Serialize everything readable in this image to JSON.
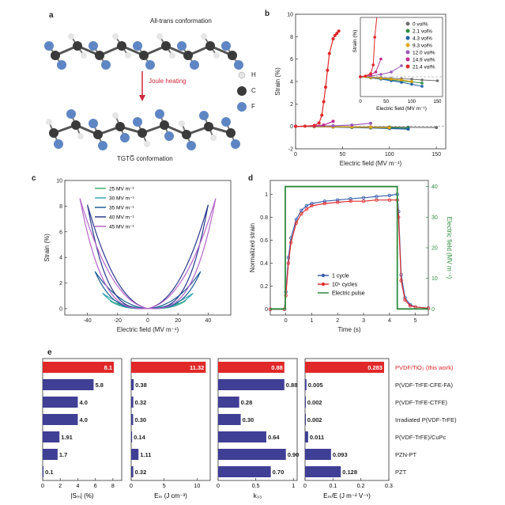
{
  "panel_a": {
    "letter": "a",
    "top_label": "All-trans conformation",
    "bottom_label": "TGTG̅ conformation",
    "arrow_label": "Joule heating",
    "legend": [
      {
        "symbol": "H",
        "color": "#e6e6e6"
      },
      {
        "symbol": "C",
        "color": "#3a3a3a"
      },
      {
        "symbol": "F",
        "color": "#5f86c4"
      }
    ]
  },
  "panel_b": {
    "letter": "b"
  },
  "panel_c": {
    "letter": "c"
  },
  "panel_d": {
    "letter": "d"
  },
  "panel_e": {
    "letter": "e"
  },
  "chart_data": [
    {
      "panel": "b",
      "type": "line",
      "xlabel": "Electric field (MV m⁻¹)",
      "ylabel": "Strain (%)",
      "xlim": [
        0,
        160
      ],
      "ylim": [
        -2,
        10
      ],
      "xticks": [
        0,
        50,
        100,
        150
      ],
      "yticks": [
        -2,
        0,
        2,
        4,
        6,
        8,
        10
      ],
      "legend": "top-right",
      "series": [
        {
          "name": "0 vol%",
          "color": "#707070",
          "x": [
            0,
            20,
            40,
            60,
            80,
            100,
            120,
            150
          ],
          "y": [
            0,
            -0.01,
            -0.02,
            -0.04,
            -0.05,
            -0.06,
            -0.08,
            -0.1
          ]
        },
        {
          "name": "2.1 vol%",
          "color": "#2e8b3e",
          "x": [
            0,
            20,
            40,
            60,
            80,
            100,
            120
          ],
          "y": [
            0,
            -0.02,
            -0.05,
            -0.08,
            -0.11,
            -0.13,
            -0.16
          ]
        },
        {
          "name": "4.3 vol%",
          "color": "#1f5fa6",
          "x": [
            0,
            20,
            40,
            60,
            80,
            100,
            120
          ],
          "y": [
            0,
            -0.03,
            -0.06,
            -0.1,
            -0.14,
            -0.19,
            -0.24
          ]
        },
        {
          "name": "9.3 vol%",
          "color": "#e0a400",
          "x": [
            0,
            20,
            40,
            60,
            80,
            100
          ],
          "y": [
            0,
            -0.02,
            -0.04,
            -0.06,
            -0.08,
            -0.12
          ]
        },
        {
          "name": "12.0 vol%",
          "color": "#9b59b6",
          "x": [
            0,
            20,
            40,
            60,
            80
          ],
          "y": [
            0,
            0.02,
            0.06,
            0.12,
            0.28
          ]
        },
        {
          "name": "14.9 vol%",
          "color": "#c02c8a",
          "x": [
            0,
            20,
            30,
            40
          ],
          "y": [
            0,
            0.05,
            0.12,
            0.45
          ]
        },
        {
          "name": "21.4 vol%",
          "color": "#e02828",
          "x": [
            0,
            10,
            20,
            25,
            28,
            30,
            32,
            34,
            36,
            40,
            42,
            44,
            46
          ],
          "y": [
            0,
            0.02,
            0.08,
            0.3,
            1.0,
            2.2,
            3.5,
            5.0,
            6.5,
            7.8,
            8.1,
            8.3,
            8.5
          ]
        }
      ],
      "inset": {
        "xlabel": "Electric field (MV m⁻¹)",
        "ylabel": "Strain (%)",
        "xlim": [
          0,
          160
        ],
        "ylim": [
          -0.5,
          1.5
        ],
        "xticks": [
          0,
          50,
          100,
          150
        ]
      }
    },
    {
      "panel": "c",
      "type": "line",
      "xlabel": "Electric field (MV m⁻¹)",
      "ylabel": "Strain (%)",
      "xlim": [
        -55,
        55
      ],
      "ylim": [
        -0.5,
        10
      ],
      "xticks": [
        -40,
        -20,
        0,
        20,
        40
      ],
      "yticks": [
        0,
        2,
        4,
        6,
        8,
        10
      ],
      "legend": "top-left",
      "series": [
        {
          "name": "25 MV m⁻¹",
          "color": "#3cb36e",
          "peak_field": 25,
          "peak_strain": 0.6
        },
        {
          "name": "30 MV m⁻¹",
          "color": "#39a7b5",
          "peak_field": 30,
          "peak_strain": 1.2
        },
        {
          "name": "35 MV m⁻¹",
          "color": "#1f5f96",
          "peak_field": 35,
          "peak_strain": 2.9
        },
        {
          "name": "40 MV m⁻¹",
          "color": "#2b3a8c",
          "peak_field": 40,
          "peak_strain": 8.1
        },
        {
          "name": "45 MV m⁻¹",
          "color": "#b565c9",
          "peak_field": 45,
          "peak_strain": 8.6
        }
      ]
    },
    {
      "panel": "d",
      "type": "line",
      "xlabel": "Time (s)",
      "ylabel": "Normalized  strain",
      "y2label": "Electric field (MV m⁻¹)",
      "xlim": [
        -0.6,
        5.5
      ],
      "ylim": [
        -0.05,
        1.12
      ],
      "y2lim": [
        -2,
        42
      ],
      "xticks": [
        0,
        1,
        2,
        3,
        4,
        5
      ],
      "yticks": [
        0,
        0.2,
        0.4,
        0.6,
        0.8,
        1.0
      ],
      "y2ticks": [
        0,
        10,
        20,
        30,
        40
      ],
      "legend": "bottom-center",
      "series": [
        {
          "name": "1 cycle",
          "color": "#3b5fb0",
          "axis": "left",
          "x": [
            -0.6,
            -0.05,
            0,
            0.1,
            0.2,
            0.4,
            0.6,
            0.8,
            1.0,
            1.5,
            2.0,
            2.5,
            3.0,
            3.5,
            4.0,
            4.3,
            4.35,
            4.45,
            4.6,
            4.8,
            5.0,
            5.5
          ],
          "y": [
            0,
            0,
            0.15,
            0.45,
            0.62,
            0.78,
            0.86,
            0.9,
            0.92,
            0.94,
            0.95,
            0.96,
            0.97,
            0.98,
            0.99,
            1.0,
            0.85,
            0.3,
            0.1,
            0.04,
            0.02,
            0.01
          ]
        },
        {
          "name": "10⁵ cycles",
          "color": "#e03030",
          "axis": "left",
          "x": [
            -0.6,
            -0.05,
            0,
            0.1,
            0.2,
            0.4,
            0.6,
            0.8,
            1.0,
            1.5,
            2.0,
            2.5,
            3.0,
            3.5,
            4.0,
            4.3,
            4.35,
            4.45,
            4.6,
            4.8,
            5.0,
            5.5
          ],
          "y": [
            0,
            0,
            0.12,
            0.4,
            0.58,
            0.75,
            0.83,
            0.87,
            0.9,
            0.92,
            0.93,
            0.94,
            0.94,
            0.95,
            0.95,
            0.95,
            0.8,
            0.25,
            0.08,
            0.03,
            0.02,
            0.01
          ]
        },
        {
          "name": "Electric pulse",
          "color": "#2e8b3e",
          "axis": "right",
          "x": [
            -0.6,
            -0.02,
            -0.02,
            4.3,
            4.3,
            5.5
          ],
          "y": [
            0,
            0,
            40,
            40,
            0,
            0
          ]
        }
      ]
    },
    {
      "panel": "e",
      "type": "bar",
      "orientation": "horizontal",
      "categories": [
        "PVDF/TiO₂ (this work)",
        "P(VDF-TrFE-CFE-FA)",
        "P(VDF-TrFE-CTFE)",
        "Irradiated P(VDF-TrFE)",
        "P(VDF-TrFE)/CuPc",
        "PZN-PT",
        "PZT"
      ],
      "highlight_color": "#e02828",
      "bar_color": "#3f3f95",
      "subplots": [
        {
          "xlabel": "|Sₘ| (%)",
          "xlim": [
            0,
            9
          ],
          "xticks": [
            0,
            2,
            4,
            6,
            8
          ],
          "values": [
            8.1,
            5.8,
            4.0,
            4.0,
            1.91,
            1.7,
            0.1
          ],
          "labels": [
            "8.1",
            "5.8",
            "4.0",
            "4.0",
            "1.91",
            "1.7",
            "0.1"
          ]
        },
        {
          "xlabel": "Eₘ (J cm⁻³)",
          "xlim": [
            0,
            12
          ],
          "xticks": [
            0,
            5,
            10
          ],
          "values": [
            11.32,
            0.38,
            0.32,
            0.3,
            0.14,
            1.11,
            0.32
          ],
          "labels": [
            "11.32",
            "0.38",
            "0.32",
            "0.30",
            "0.14",
            "1.11",
            "0.32"
          ]
        },
        {
          "xlabel": "k₃₃",
          "xlim": [
            0,
            1.05
          ],
          "xticks": [
            0,
            0.5,
            1.0
          ],
          "values": [
            0.88,
            0.88,
            0.28,
            0.3,
            0.64,
            0.9,
            0.7
          ],
          "labels": [
            "0.88",
            "0.88",
            "0.28",
            "0.30",
            "0.64",
            "0.90",
            "0.70"
          ]
        },
        {
          "xlabel": "Eₘ/E (J m⁻² V⁻¹)",
          "xlim": [
            0,
            0.3
          ],
          "xticks": [
            0,
            0.1,
            0.2,
            0.3
          ],
          "values": [
            0.283,
            0.005,
            0.002,
            0.002,
            0.011,
            0.093,
            0.128
          ],
          "labels": [
            "0.283",
            "0.005",
            "0.002",
            "0.002",
            "0.011",
            "0.093",
            "0.128"
          ]
        }
      ]
    }
  ]
}
